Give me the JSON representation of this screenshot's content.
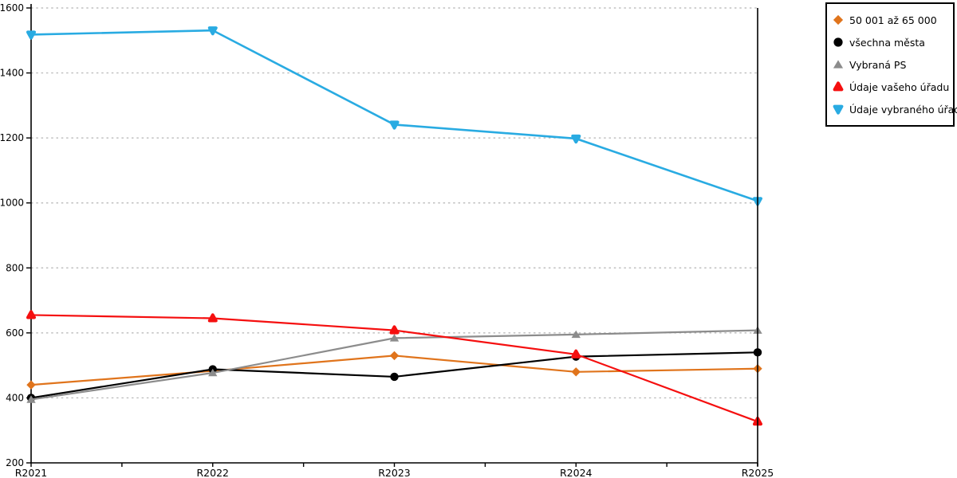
{
  "chart_data": {
    "type": "line",
    "title": "",
    "xlabel": "",
    "ylabel": "",
    "categories": [
      "R2021",
      "R2022",
      "R2023",
      "R2024",
      "R2025"
    ],
    "series": [
      {
        "name": "50 001 až 65 000",
        "marker": "diamond",
        "color": "#E0741C",
        "values": [
          440,
          483,
          530,
          480,
          490
        ]
      },
      {
        "name": "všechna města",
        "marker": "circle",
        "color": "#000000",
        "values": [
          400,
          488,
          465,
          527,
          540
        ]
      },
      {
        "name": "Vybraná PS",
        "marker": "triangle-up",
        "color": "#8C8C8C",
        "values": [
          395,
          477,
          584,
          595,
          608
        ]
      },
      {
        "name": "Údaje vašeho úřadu",
        "marker": "triangle-up-rounded",
        "color": "#F50F0F",
        "values": [
          655,
          645,
          608,
          534,
          327
        ]
      },
      {
        "name": "Údaje vybraného úřadu",
        "marker": "triangle-down-rounded",
        "color": "#29ABE2",
        "values": [
          1518,
          1531,
          1241,
          1198,
          1006
        ]
      }
    ],
    "ylim": [
      200,
      1600
    ],
    "yticks": [
      200,
      400,
      600,
      800,
      1000,
      1200,
      1400,
      1600
    ],
    "grid": "horizontal-dashed",
    "legend_position": "outside-top-right"
  },
  "colors": {
    "background": "#FFFFFF",
    "axis": "#000000",
    "gridline": "#B4B4B4"
  }
}
